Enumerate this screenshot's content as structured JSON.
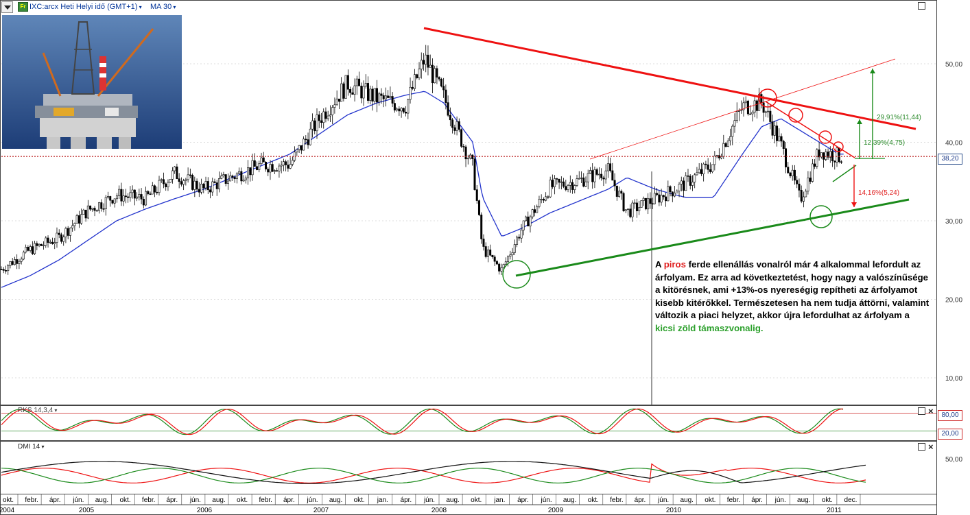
{
  "header": {
    "symbol": "IXC:arcx Heti Helyi idő (GMT+1)",
    "ma_label": "MA 30"
  },
  "price_axis": {
    "ticks": [
      "50,00",
      "40,00",
      "30,00",
      "20,00",
      "10,00"
    ],
    "current_price": "38,20"
  },
  "stochastic": {
    "label": "RKS 14,3,4",
    "upper_level": "80,00",
    "lower_level": "20,00"
  },
  "dmi": {
    "label": "DMI 14",
    "tick": "50,00"
  },
  "time_axis": {
    "months": [
      "okt.",
      "febr.",
      "ápr.",
      "jún.",
      "aug.",
      "okt.",
      "febr.",
      "ápr.",
      "jún.",
      "aug.",
      "okt.",
      "febr.",
      "ápr.",
      "jún.",
      "aug.",
      "okt.",
      "jan.",
      "ápr.",
      "jún.",
      "aug.",
      "okt.",
      "jan.",
      "ápr.",
      "jún.",
      "aug.",
      "okt.",
      "febr.",
      "ápr.",
      "jún.",
      "aug.",
      "okt.",
      "febr.",
      "ápr.",
      "jún.",
      "aug.",
      "okt.",
      "dec."
    ],
    "years": [
      "2004",
      "2005",
      "2006",
      "2007",
      "2008",
      "2009",
      "2010",
      "2011"
    ]
  },
  "annotations": {
    "pct_large": "29,91%(11,44)",
    "pct_mid": "12,39%(4,75)",
    "pct_low": "14,16%(5,24)"
  },
  "comment": {
    "p1": "A ",
    "red_word": "piros",
    "p2": " ferde ellenállás vonalról már 4 alkalommal lefordult az árfolyam. Ez arra ad következtetést, hogy nagy a valószínűsége a kitörésnek, ami +13%-os nyereségig repítheti az árfolyamot kisebb kitérőkkel. Természetesen ha nem tudja áttörni, valamint változik a piaci helyzet, akkor újra lefordulhat az árfolyam a ",
    "green_word": "kicsi zöld támaszvonalig."
  },
  "chart_data": {
    "type": "candlestick",
    "title": "IXC:arcx Heti Helyi idő (GMT+1)",
    "ylim": [
      0,
      56
    ],
    "x": [
      "2004-09",
      "2004-12",
      "2005-03",
      "2005-06",
      "2005-09",
      "2005-12",
      "2006-03",
      "2006-06",
      "2006-09",
      "2006-12",
      "2007-03",
      "2007-06",
      "2007-09",
      "2007-12",
      "2008-03",
      "2008-05",
      "2008-07",
      "2008-10",
      "2008-11",
      "2009-01",
      "2009-03",
      "2009-06",
      "2009-09",
      "2009-12",
      "2010-02",
      "2010-05",
      "2010-08",
      "2010-11",
      "2011-02",
      "2011-04",
      "2011-06",
      "2011-08",
      "2011-10",
      "2011-12"
    ],
    "close": [
      23.8,
      26.3,
      27.8,
      31.3,
      33.3,
      32.8,
      36.1,
      34.0,
      35.6,
      37.1,
      37.2,
      42.9,
      47.5,
      45.6,
      44.6,
      50.7,
      45.7,
      36.8,
      26.5,
      23.7,
      28.8,
      34.3,
      35.1,
      36.5,
      31.1,
      32.8,
      34.7,
      37.3,
      44.5,
      45.1,
      39.6,
      32.7,
      39.0,
      38.2
    ],
    "ma30": [
      21.5,
      23.0,
      25.0,
      27.5,
      30.0,
      31.5,
      32.8,
      34.0,
      35.5,
      37.0,
      38.5,
      41.0,
      43.5,
      45.0,
      46.0,
      46.5,
      45.0,
      40.0,
      33.0,
      28.0,
      29.0,
      31.0,
      32.5,
      34.0,
      35.5,
      34.0,
      33.0,
      33.0,
      38.5,
      42.0,
      43.0,
      41.5,
      40.0,
      38.5
    ],
    "series": [
      {
        "name": "MA 30",
        "values": "ma30"
      }
    ],
    "current_price": 38.2,
    "resistance_line": {
      "from": [
        "2008-05",
        54.5
      ],
      "to": [
        "2011-12",
        41.8
      ]
    },
    "support_line": {
      "from": [
        "2009-03",
        23.0
      ],
      "to": [
        "2011-12",
        32.8
      ]
    },
    "stochastic": {
      "levels": [
        20,
        80
      ]
    },
    "dmi": {
      "level": 50
    }
  }
}
